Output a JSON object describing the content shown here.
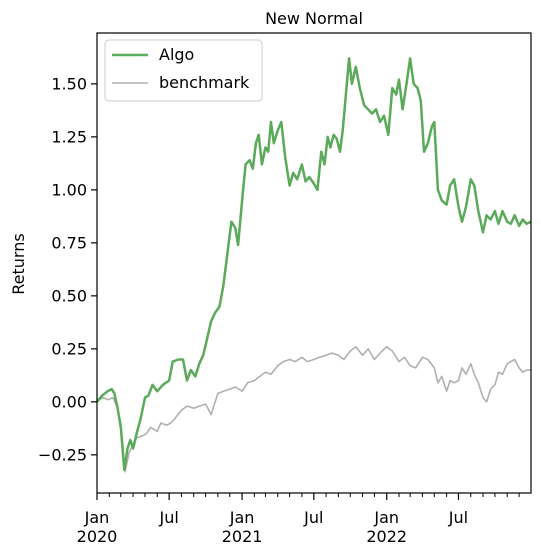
{
  "chart_data": {
    "type": "line",
    "title": "New Normal",
    "xlabel": "",
    "ylabel": "Returns",
    "ylim": [
      -0.43,
      1.74
    ],
    "xlim": [
      "2020-01-01",
      "2022-12-31"
    ],
    "y_ticks": [
      "−0.25",
      "0.00",
      "0.25",
      "0.50",
      "0.75",
      "1.00",
      "1.25",
      "1.50"
    ],
    "x_ticks": [
      {
        "date": "2020-01-01",
        "label": "Jan",
        "sub": "2020"
      },
      {
        "date": "2020-07-01",
        "label": "Jul",
        "sub": ""
      },
      {
        "date": "2021-01-01",
        "label": "Jan",
        "sub": "2021"
      },
      {
        "date": "2021-07-01",
        "label": "Jul",
        "sub": ""
      },
      {
        "date": "2022-01-01",
        "label": "Jan",
        "sub": "2022"
      },
      {
        "date": "2022-07-01",
        "label": "Jul",
        "sub": ""
      }
    ],
    "legend_position": "top-left",
    "grid": false,
    "series": [
      {
        "name": "Algo",
        "color": "#5aaa5a",
        "points": [
          [
            "2020-01-01",
            0.0
          ],
          [
            "2020-01-14",
            0.03
          ],
          [
            "2020-01-28",
            0.05
          ],
          [
            "2020-02-07",
            0.06
          ],
          [
            "2020-02-14",
            0.04
          ],
          [
            "2020-02-21",
            -0.02
          ],
          [
            "2020-03-01",
            -0.12
          ],
          [
            "2020-03-10",
            -0.32
          ],
          [
            "2020-03-18",
            -0.22
          ],
          [
            "2020-03-25",
            -0.18
          ],
          [
            "2020-04-01",
            -0.22
          ],
          [
            "2020-04-10",
            -0.15
          ],
          [
            "2020-04-20",
            -0.08
          ],
          [
            "2020-05-01",
            0.02
          ],
          [
            "2020-05-10",
            0.03
          ],
          [
            "2020-05-20",
            0.08
          ],
          [
            "2020-06-01",
            0.05
          ],
          [
            "2020-06-15",
            0.08
          ],
          [
            "2020-07-01",
            0.1
          ],
          [
            "2020-07-10",
            0.19
          ],
          [
            "2020-07-25",
            0.2
          ],
          [
            "2020-08-05",
            0.2
          ],
          [
            "2020-08-15",
            0.1
          ],
          [
            "2020-08-25",
            0.15
          ],
          [
            "2020-09-05",
            0.12
          ],
          [
            "2020-09-15",
            0.18
          ],
          [
            "2020-09-25",
            0.22
          ],
          [
            "2020-10-05",
            0.3
          ],
          [
            "2020-10-15",
            0.38
          ],
          [
            "2020-10-25",
            0.42
          ],
          [
            "2020-11-05",
            0.45
          ],
          [
            "2020-11-15",
            0.55
          ],
          [
            "2020-11-25",
            0.7
          ],
          [
            "2020-12-05",
            0.85
          ],
          [
            "2020-12-15",
            0.82
          ],
          [
            "2020-12-22",
            0.74
          ],
          [
            "2021-01-01",
            0.95
          ],
          [
            "2021-01-10",
            1.12
          ],
          [
            "2021-01-20",
            1.14
          ],
          [
            "2021-01-28",
            1.1
          ],
          [
            "2021-02-05",
            1.22
          ],
          [
            "2021-02-12",
            1.26
          ],
          [
            "2021-02-20",
            1.12
          ],
          [
            "2021-03-01",
            1.2
          ],
          [
            "2021-03-08",
            1.18
          ],
          [
            "2021-03-15",
            1.32
          ],
          [
            "2021-03-22",
            1.22
          ],
          [
            "2021-04-01",
            1.28
          ],
          [
            "2021-04-10",
            1.32
          ],
          [
            "2021-04-20",
            1.15
          ],
          [
            "2021-05-01",
            1.02
          ],
          [
            "2021-05-10",
            1.08
          ],
          [
            "2021-05-20",
            1.05
          ],
          [
            "2021-06-01",
            1.12
          ],
          [
            "2021-06-10",
            1.04
          ],
          [
            "2021-06-20",
            1.06
          ],
          [
            "2021-07-01",
            1.03
          ],
          [
            "2021-07-10",
            1.0
          ],
          [
            "2021-07-20",
            1.18
          ],
          [
            "2021-07-28",
            1.12
          ],
          [
            "2021-08-05",
            1.25
          ],
          [
            "2021-08-12",
            1.2
          ],
          [
            "2021-08-20",
            1.26
          ],
          [
            "2021-08-28",
            1.24
          ],
          [
            "2021-09-05",
            1.18
          ],
          [
            "2021-09-12",
            1.28
          ],
          [
            "2021-09-20",
            1.45
          ],
          [
            "2021-09-28",
            1.62
          ],
          [
            "2021-10-05",
            1.5
          ],
          [
            "2021-10-15",
            1.58
          ],
          [
            "2021-10-25",
            1.48
          ],
          [
            "2021-11-05",
            1.4
          ],
          [
            "2021-11-15",
            1.38
          ],
          [
            "2021-11-25",
            1.36
          ],
          [
            "2021-12-05",
            1.38
          ],
          [
            "2021-12-15",
            1.32
          ],
          [
            "2021-12-25",
            1.35
          ],
          [
            "2022-01-05",
            1.26
          ],
          [
            "2022-01-15",
            1.48
          ],
          [
            "2022-01-25",
            1.45
          ],
          [
            "2022-02-01",
            1.52
          ],
          [
            "2022-02-10",
            1.38
          ],
          [
            "2022-02-20",
            1.5
          ],
          [
            "2022-03-01",
            1.62
          ],
          [
            "2022-03-10",
            1.5
          ],
          [
            "2022-03-20",
            1.48
          ],
          [
            "2022-03-28",
            1.42
          ],
          [
            "2022-04-05",
            1.18
          ],
          [
            "2022-04-15",
            1.22
          ],
          [
            "2022-04-25",
            1.3
          ],
          [
            "2022-05-01",
            1.32
          ],
          [
            "2022-05-10",
            1.0
          ],
          [
            "2022-05-20",
            0.95
          ],
          [
            "2022-06-01",
            0.93
          ],
          [
            "2022-06-10",
            1.02
          ],
          [
            "2022-06-20",
            1.05
          ],
          [
            "2022-07-01",
            0.92
          ],
          [
            "2022-07-10",
            0.85
          ],
          [
            "2022-07-20",
            0.92
          ],
          [
            "2022-08-01",
            1.05
          ],
          [
            "2022-08-10",
            1.02
          ],
          [
            "2022-08-20",
            0.9
          ],
          [
            "2022-09-01",
            0.8
          ],
          [
            "2022-09-10",
            0.88
          ],
          [
            "2022-09-20",
            0.86
          ],
          [
            "2022-10-01",
            0.9
          ],
          [
            "2022-10-10",
            0.84
          ],
          [
            "2022-10-20",
            0.9
          ],
          [
            "2022-11-01",
            0.85
          ],
          [
            "2022-11-10",
            0.84
          ],
          [
            "2022-11-20",
            0.88
          ],
          [
            "2022-12-01",
            0.83
          ],
          [
            "2022-12-10",
            0.86
          ],
          [
            "2022-12-20",
            0.84
          ],
          [
            "2022-12-31",
            0.85
          ]
        ]
      },
      {
        "name": "benchmark",
        "color": "#b0b0b0",
        "points": [
          [
            "2020-01-01",
            0.0
          ],
          [
            "2020-01-15",
            0.02
          ],
          [
            "2020-01-30",
            0.01
          ],
          [
            "2020-02-10",
            0.02
          ],
          [
            "2020-02-20",
            -0.02
          ],
          [
            "2020-03-01",
            -0.1
          ],
          [
            "2020-03-12",
            -0.33
          ],
          [
            "2020-03-22",
            -0.24
          ],
          [
            "2020-04-01",
            -0.2
          ],
          [
            "2020-04-10",
            -0.17
          ],
          [
            "2020-04-25",
            -0.16
          ],
          [
            "2020-05-05",
            -0.15
          ],
          [
            "2020-05-15",
            -0.12
          ],
          [
            "2020-06-01",
            -0.14
          ],
          [
            "2020-06-10",
            -0.1
          ],
          [
            "2020-06-25",
            -0.11
          ],
          [
            "2020-07-05",
            -0.1
          ],
          [
            "2020-07-15",
            -0.08
          ],
          [
            "2020-08-01",
            -0.04
          ],
          [
            "2020-08-15",
            -0.02
          ],
          [
            "2020-09-01",
            -0.03
          ],
          [
            "2020-09-15",
            -0.02
          ],
          [
            "2020-10-01",
            -0.01
          ],
          [
            "2020-10-15",
            -0.06
          ],
          [
            "2020-11-01",
            0.04
          ],
          [
            "2020-11-15",
            0.05
          ],
          [
            "2020-12-01",
            0.06
          ],
          [
            "2020-12-15",
            0.07
          ],
          [
            "2021-01-01",
            0.05
          ],
          [
            "2021-01-15",
            0.09
          ],
          [
            "2021-02-01",
            0.1
          ],
          [
            "2021-02-15",
            0.12
          ],
          [
            "2021-03-01",
            0.14
          ],
          [
            "2021-03-15",
            0.13
          ],
          [
            "2021-04-01",
            0.17
          ],
          [
            "2021-04-15",
            0.19
          ],
          [
            "2021-05-01",
            0.2
          ],
          [
            "2021-05-15",
            0.19
          ],
          [
            "2021-06-01",
            0.21
          ],
          [
            "2021-06-15",
            0.19
          ],
          [
            "2021-07-01",
            0.2
          ],
          [
            "2021-07-15",
            0.21
          ],
          [
            "2021-08-01",
            0.22
          ],
          [
            "2021-08-15",
            0.23
          ],
          [
            "2021-09-01",
            0.22
          ],
          [
            "2021-09-15",
            0.2
          ],
          [
            "2021-10-01",
            0.24
          ],
          [
            "2021-10-15",
            0.26
          ],
          [
            "2021-11-01",
            0.22
          ],
          [
            "2021-11-15",
            0.25
          ],
          [
            "2021-12-01",
            0.2
          ],
          [
            "2021-12-15",
            0.23
          ],
          [
            "2022-01-01",
            0.26
          ],
          [
            "2022-01-15",
            0.24
          ],
          [
            "2022-02-01",
            0.19
          ],
          [
            "2022-02-15",
            0.21
          ],
          [
            "2022-03-01",
            0.17
          ],
          [
            "2022-03-15",
            0.16
          ],
          [
            "2022-04-01",
            0.21
          ],
          [
            "2022-04-15",
            0.2
          ],
          [
            "2022-05-01",
            0.16
          ],
          [
            "2022-05-10",
            0.09
          ],
          [
            "2022-05-20",
            0.12
          ],
          [
            "2022-06-01",
            0.05
          ],
          [
            "2022-06-10",
            0.1
          ],
          [
            "2022-06-20",
            0.09
          ],
          [
            "2022-07-01",
            0.1
          ],
          [
            "2022-07-10",
            0.16
          ],
          [
            "2022-07-20",
            0.13
          ],
          [
            "2022-08-01",
            0.18
          ],
          [
            "2022-08-10",
            0.13
          ],
          [
            "2022-08-20",
            0.09
          ],
          [
            "2022-09-01",
            0.02
          ],
          [
            "2022-09-10",
            0.0
          ],
          [
            "2022-09-20",
            0.06
          ],
          [
            "2022-10-01",
            0.08
          ],
          [
            "2022-10-10",
            0.14
          ],
          [
            "2022-10-20",
            0.13
          ],
          [
            "2022-11-01",
            0.18
          ],
          [
            "2022-11-10",
            0.19
          ],
          [
            "2022-11-20",
            0.2
          ],
          [
            "2022-12-01",
            0.16
          ],
          [
            "2022-12-10",
            0.14
          ],
          [
            "2022-12-20",
            0.15
          ],
          [
            "2022-12-31",
            0.15
          ]
        ]
      }
    ]
  }
}
